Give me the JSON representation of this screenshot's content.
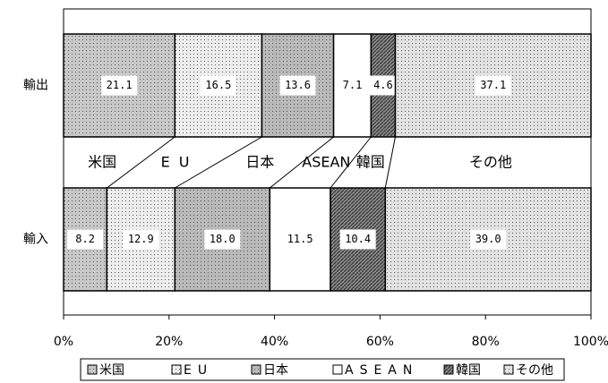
{
  "chart_data": {
    "type": "bar",
    "orientation": "horizontal",
    "stacked": true,
    "categories": [
      "輸出",
      "輸入"
    ],
    "series": [
      {
        "name": "米国",
        "color": "#c8c8c8",
        "values": [
          21.1,
          8.2
        ],
        "value_labels": [
          "21.1",
          "8.2"
        ]
      },
      {
        "name": "EU",
        "color": "#ededed",
        "values": [
          16.5,
          12.9
        ],
        "value_labels": [
          "16.5",
          "12.9"
        ]
      },
      {
        "name": "日本",
        "color": "#b9b9b9",
        "values": [
          13.6,
          18.0
        ],
        "value_labels": [
          "13.6",
          "18.0"
        ]
      },
      {
        "name": "ASEAN",
        "color": "#ffffff",
        "values": [
          7.1,
          11.5
        ],
        "value_labels": [
          "7.1",
          "11.5"
        ]
      },
      {
        "name": "韓国",
        "color": "#8a8a8a",
        "values": [
          4.6,
          10.4
        ],
        "value_labels": [
          "4.6",
          "10.4"
        ]
      },
      {
        "name": "その他",
        "color": "#e2e2e2",
        "values": [
          37.1,
          39.0
        ],
        "value_labels": [
          "37.1",
          "39.0"
        ]
      }
    ],
    "xlim": [
      0,
      100
    ],
    "xticks": [
      {
        "value": 0,
        "label": "0%"
      },
      {
        "value": 20,
        "label": "20%"
      },
      {
        "value": 40,
        "label": "40%"
      },
      {
        "value": 60,
        "label": "60%"
      },
      {
        "value": 80,
        "label": "80%"
      },
      {
        "value": 100,
        "label": "100%"
      }
    ],
    "legend": "bottom"
  }
}
